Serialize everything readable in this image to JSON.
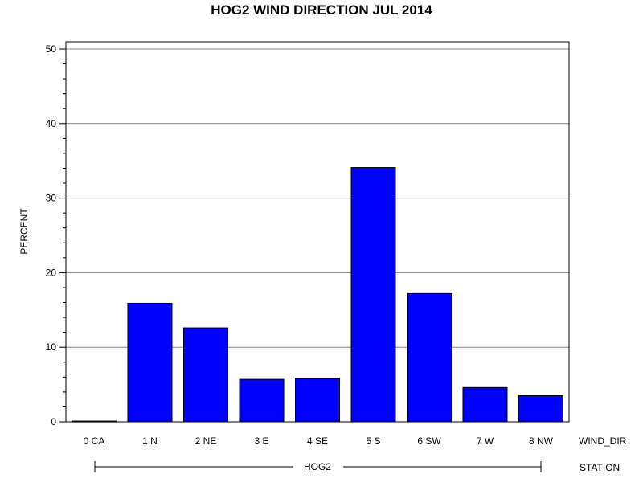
{
  "chart_data": {
    "type": "bar",
    "title": "HOG2 WIND DIRECTION JUL 2014",
    "ylabel": "PERCENT",
    "xlabel": "WIND_DIR",
    "group_axis_label": "STATION",
    "group_label": "HOG2",
    "categories": [
      "0 CA",
      "1 N",
      "2 NE",
      "3 E",
      "4 SE",
      "5 S",
      "6 SW",
      "7 W",
      "8 NW"
    ],
    "values": [
      0.1,
      15.9,
      12.6,
      5.7,
      5.8,
      34.1,
      17.2,
      4.6,
      3.5
    ],
    "ylim": [
      0,
      50
    ],
    "yticks": [
      0,
      10,
      20,
      30,
      40,
      50
    ],
    "ytick_labels": [
      "0",
      "10",
      "20",
      "30",
      "40",
      "50"
    ],
    "grid": true,
    "bar_color": "#0000ff"
  }
}
